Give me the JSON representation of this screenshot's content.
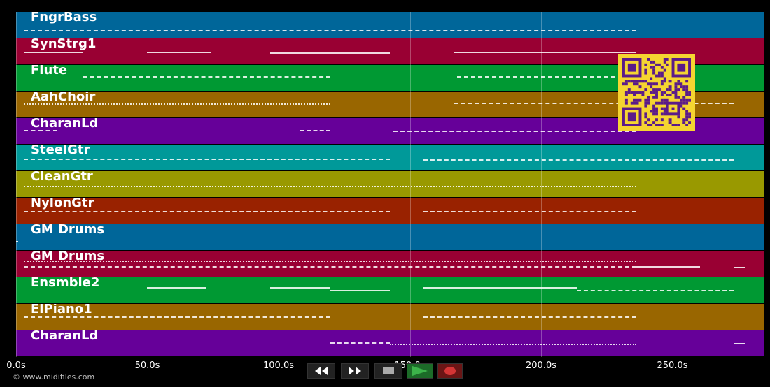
{
  "tracks": [
    {
      "name": "FngrBass",
      "color": "#006699"
    },
    {
      "name": "SynStrg1",
      "color": "#990033"
    },
    {
      "name": "Flute",
      "color": "#009933"
    },
    {
      "name": "AahChoir",
      "color": "#996600"
    },
    {
      "name": "CharanLd",
      "color": "#660099"
    },
    {
      "name": "SteelGtr",
      "color": "#009999"
    },
    {
      "name": "CleanGtr",
      "color": "#999900"
    },
    {
      "name": "NylonGtr",
      "color": "#992200"
    },
    {
      "name": "GM Drums",
      "color": "#006699"
    },
    {
      "name": "GM Drums",
      "color": "#990033"
    },
    {
      "name": "Ensmble2",
      "color": "#009933"
    },
    {
      "name": "ElPiano1",
      "color": "#996600"
    },
    {
      "name": "CharanLd",
      "color": "#660099"
    }
  ],
  "axis": {
    "labels": [
      "0.0s",
      "50.0s",
      "100.0s",
      "150.0s",
      "200.0s",
      "250.0s"
    ]
  },
  "footer": {
    "copyright": "© www.midifiles.com"
  },
  "transport": {
    "rewind_icon": "rewind-icon",
    "forward_icon": "fast-forward-icon",
    "stop_icon": "stop-icon",
    "play_icon": "play-icon",
    "record_icon": "record-icon"
  },
  "colors": {
    "play": "#2e9e3a",
    "record": "#cc3333",
    "qr": "#f5d531"
  }
}
